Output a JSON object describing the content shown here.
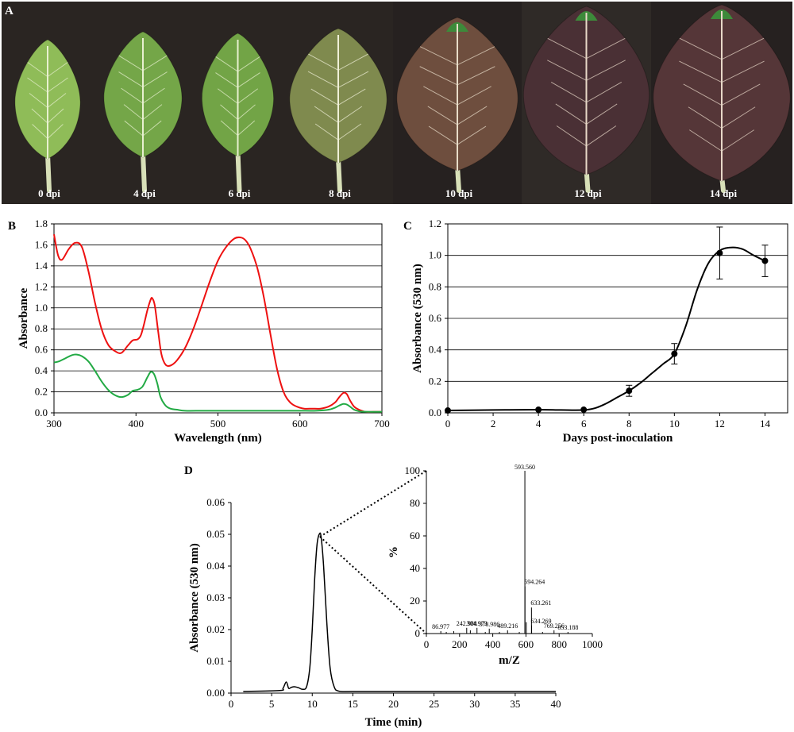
{
  "panels": {
    "A": {
      "letter": "A",
      "leaves": [
        {
          "label": "0 dpi",
          "fill": "#8fbc58",
          "vein": "#e8f0d0"
        },
        {
          "label": "4 dpi",
          "fill": "#74a648",
          "vein": "#e8f0d0"
        },
        {
          "label": "6 dpi",
          "fill": "#72a446",
          "vein": "#e8f0d0"
        },
        {
          "label": "8 dpi",
          "fill": "#7f8a4e",
          "vein": "#f0f0d8"
        },
        {
          "label": "10 dpi",
          "fill": "#6e4e3e",
          "vein": "#e8dcc8"
        },
        {
          "label": "12 dpi",
          "fill": "#4a3035",
          "vein": "#e8d8c8"
        },
        {
          "label": "14 dpi",
          "fill": "#553638",
          "vein": "#e8d8c8"
        }
      ],
      "colors": {
        "background": "#2a2522",
        "tip": "#3d8a3a"
      }
    },
    "B": {
      "letter": "B"
    },
    "C": {
      "letter": "C"
    },
    "D": {
      "letter": "D"
    }
  },
  "chart_data": [
    {
      "type": "line",
      "panel": "B",
      "xlabel": "Wavelength (nm)",
      "ylabel": "Absorbance",
      "xlim": [
        300,
        700
      ],
      "ylim": [
        0,
        1.8
      ],
      "xticks": [
        "300",
        "400",
        "500",
        "600",
        "700"
      ],
      "yticks": [
        "0.0",
        "0.2",
        "0.4",
        "0.6",
        "0.8",
        "1.0",
        "1.2",
        "1.4",
        "1.6",
        "1.8"
      ],
      "grid": "horizontal",
      "series": [
        {
          "color": "#ee1111",
          "x": [
            300,
            305,
            310,
            318,
            326,
            334,
            342,
            350,
            358,
            366,
            374,
            382,
            390,
            396,
            402,
            406,
            410,
            414,
            418,
            420,
            423,
            427,
            431,
            436,
            442,
            450,
            460,
            470,
            480,
            490,
            500,
            510,
            520,
            528,
            534,
            540,
            548,
            556,
            564,
            572,
            580,
            588,
            596,
            605,
            615,
            625,
            635,
            643,
            648,
            653,
            657,
            661,
            666,
            672,
            680,
            690,
            700
          ],
          "y": [
            1.7,
            1.5,
            1.46,
            1.56,
            1.62,
            1.58,
            1.35,
            1.05,
            0.8,
            0.65,
            0.59,
            0.57,
            0.64,
            0.69,
            0.7,
            0.74,
            0.85,
            0.98,
            1.08,
            1.09,
            1.02,
            0.78,
            0.56,
            0.46,
            0.45,
            0.5,
            0.62,
            0.8,
            1.02,
            1.25,
            1.45,
            1.58,
            1.66,
            1.67,
            1.64,
            1.56,
            1.38,
            1.1,
            0.75,
            0.42,
            0.2,
            0.1,
            0.06,
            0.04,
            0.04,
            0.04,
            0.06,
            0.1,
            0.15,
            0.19,
            0.18,
            0.12,
            0.06,
            0.03,
            0.01,
            0.01,
            0.01
          ]
        },
        {
          "color": "#22aa44",
          "x": [
            300,
            306,
            314,
            322,
            328,
            334,
            342,
            350,
            358,
            366,
            374,
            382,
            390,
            396,
            402,
            408,
            414,
            418,
            422,
            426,
            430,
            436,
            442,
            450,
            460,
            480,
            500,
            520,
            540,
            560,
            580,
            600,
            620,
            635,
            643,
            648,
            653,
            657,
            661,
            666,
            672,
            680,
            700
          ],
          "y": [
            0.48,
            0.49,
            0.52,
            0.55,
            0.555,
            0.54,
            0.49,
            0.4,
            0.3,
            0.22,
            0.17,
            0.15,
            0.17,
            0.21,
            0.22,
            0.25,
            0.34,
            0.39,
            0.37,
            0.28,
            0.15,
            0.07,
            0.04,
            0.03,
            0.02,
            0.02,
            0.02,
            0.02,
            0.02,
            0.02,
            0.02,
            0.02,
            0.02,
            0.03,
            0.05,
            0.07,
            0.085,
            0.08,
            0.06,
            0.03,
            0.015,
            0.01,
            0.01
          ]
        }
      ]
    },
    {
      "type": "line",
      "panel": "C",
      "xlabel": "Days post-inoculation",
      "ylabel": "Absorbance (530 nm)",
      "xlim": [
        0,
        15
      ],
      "ylim": [
        0,
        1.2
      ],
      "xticks": [
        "0",
        "2",
        "4",
        "6",
        "8",
        "10",
        "12",
        "14"
      ],
      "yticks": [
        "0.0",
        "0.2",
        "0.4",
        "0.6",
        "0.8",
        "1.0",
        "1.2"
      ],
      "grid": "horizontal",
      "series": [
        {
          "color": "#000000",
          "x": [
            0,
            4,
            6,
            8,
            10,
            12,
            14
          ],
          "y": [
            0.015,
            0.02,
            0.02,
            0.14,
            0.375,
            1.015,
            0.965
          ],
          "err": [
            0.005,
            0.005,
            0.005,
            0.035,
            0.065,
            0.165,
            0.1
          ]
        }
      ],
      "smooth_curve": {
        "x": [
          0,
          2,
          4,
          5,
          6,
          6.5,
          7,
          7.5,
          8,
          8.5,
          9,
          9.5,
          10,
          10.5,
          11,
          11.5,
          12,
          12.5,
          13,
          13.5,
          14
        ],
        "y": [
          0.015,
          0.018,
          0.02,
          0.018,
          0.018,
          0.03,
          0.06,
          0.1,
          0.14,
          0.19,
          0.25,
          0.31,
          0.375,
          0.55,
          0.78,
          0.95,
          1.03,
          1.05,
          1.04,
          1.0,
          0.965
        ]
      }
    },
    {
      "type": "line",
      "panel": "D",
      "xlabel": "Time (min)",
      "ylabel": "Absorbance (530 nm)",
      "xlim": [
        0,
        40
      ],
      "ylim": [
        0,
        0.06
      ],
      "xticks": [
        "0",
        "5",
        "10",
        "15",
        "20",
        "25",
        "30",
        "35",
        "40"
      ],
      "yticks": [
        "0.00",
        "0.01",
        "0.02",
        "0.03",
        "0.04",
        "0.05",
        "0.06"
      ],
      "grid": "none",
      "series": [
        {
          "color": "#000000",
          "x": [
            1.5,
            6.0,
            6.4,
            6.8,
            7.1,
            7.4,
            7.8,
            8.3,
            8.8,
            9.3,
            9.7,
            10.0,
            10.3,
            10.6,
            10.9,
            11.1,
            11.4,
            11.8,
            12.2,
            12.7,
            13.3,
            15,
            20,
            30,
            40
          ],
          "y": [
            0.0005,
            0.0008,
            0.0015,
            0.0035,
            0.0015,
            0.0018,
            0.002,
            0.0017,
            0.0012,
            0.002,
            0.008,
            0.02,
            0.036,
            0.047,
            0.0502,
            0.049,
            0.04,
            0.022,
            0.008,
            0.002,
            0.0006,
            0.0005,
            0.0005,
            0.0005,
            0.0005
          ]
        }
      ]
    },
    {
      "type": "bar",
      "panel": "D-inset",
      "xlabel": "m/Z",
      "ylabel": "%",
      "xlim": [
        0,
        1000
      ],
      "ylim": [
        0,
        100
      ],
      "xticks": [
        "0",
        "200",
        "400",
        "600",
        "800",
        "1000"
      ],
      "yticks": [
        "0",
        "20",
        "40",
        "60",
        "80",
        "100"
      ],
      "x": [
        86.977,
        120,
        165,
        242.988,
        265,
        304.973,
        355,
        378.986,
        440,
        489.216,
        560,
        593.56,
        594.264,
        602,
        633.261,
        634.269,
        700,
        769.256,
        853.188
      ],
      "values": [
        1.5,
        1,
        1.5,
        3.5,
        2,
        3.5,
        1,
        3,
        1,
        2,
        1,
        100,
        29,
        7,
        16,
        5,
        1,
        2,
        1
      ],
      "peak_labels": [
        {
          "text": "86.977",
          "mz": 86.977,
          "pct": 1.5
        },
        {
          "text": "242.988",
          "mz": 242.988,
          "pct": 3.5
        },
        {
          "text": "304.973",
          "mz": 304.973,
          "pct": 3.5
        },
        {
          "text": "378.986",
          "mz": 378.986,
          "pct": 3.0
        },
        {
          "text": "489.216",
          "mz": 489.216,
          "pct": 2.0
        },
        {
          "text": "593.560",
          "mz": 593.56,
          "pct": 100
        },
        {
          "text": "594.264",
          "mz": 594.264,
          "pct": 29
        },
        {
          "text": "633.261",
          "mz": 633.261,
          "pct": 16
        },
        {
          "text": "634.269",
          "mz": 634.269,
          "pct": 5
        },
        {
          "text": "769.256",
          "mz": 769.256,
          "pct": 2
        },
        {
          "text": "853.188",
          "mz": 853.188,
          "pct": 1
        }
      ]
    }
  ]
}
